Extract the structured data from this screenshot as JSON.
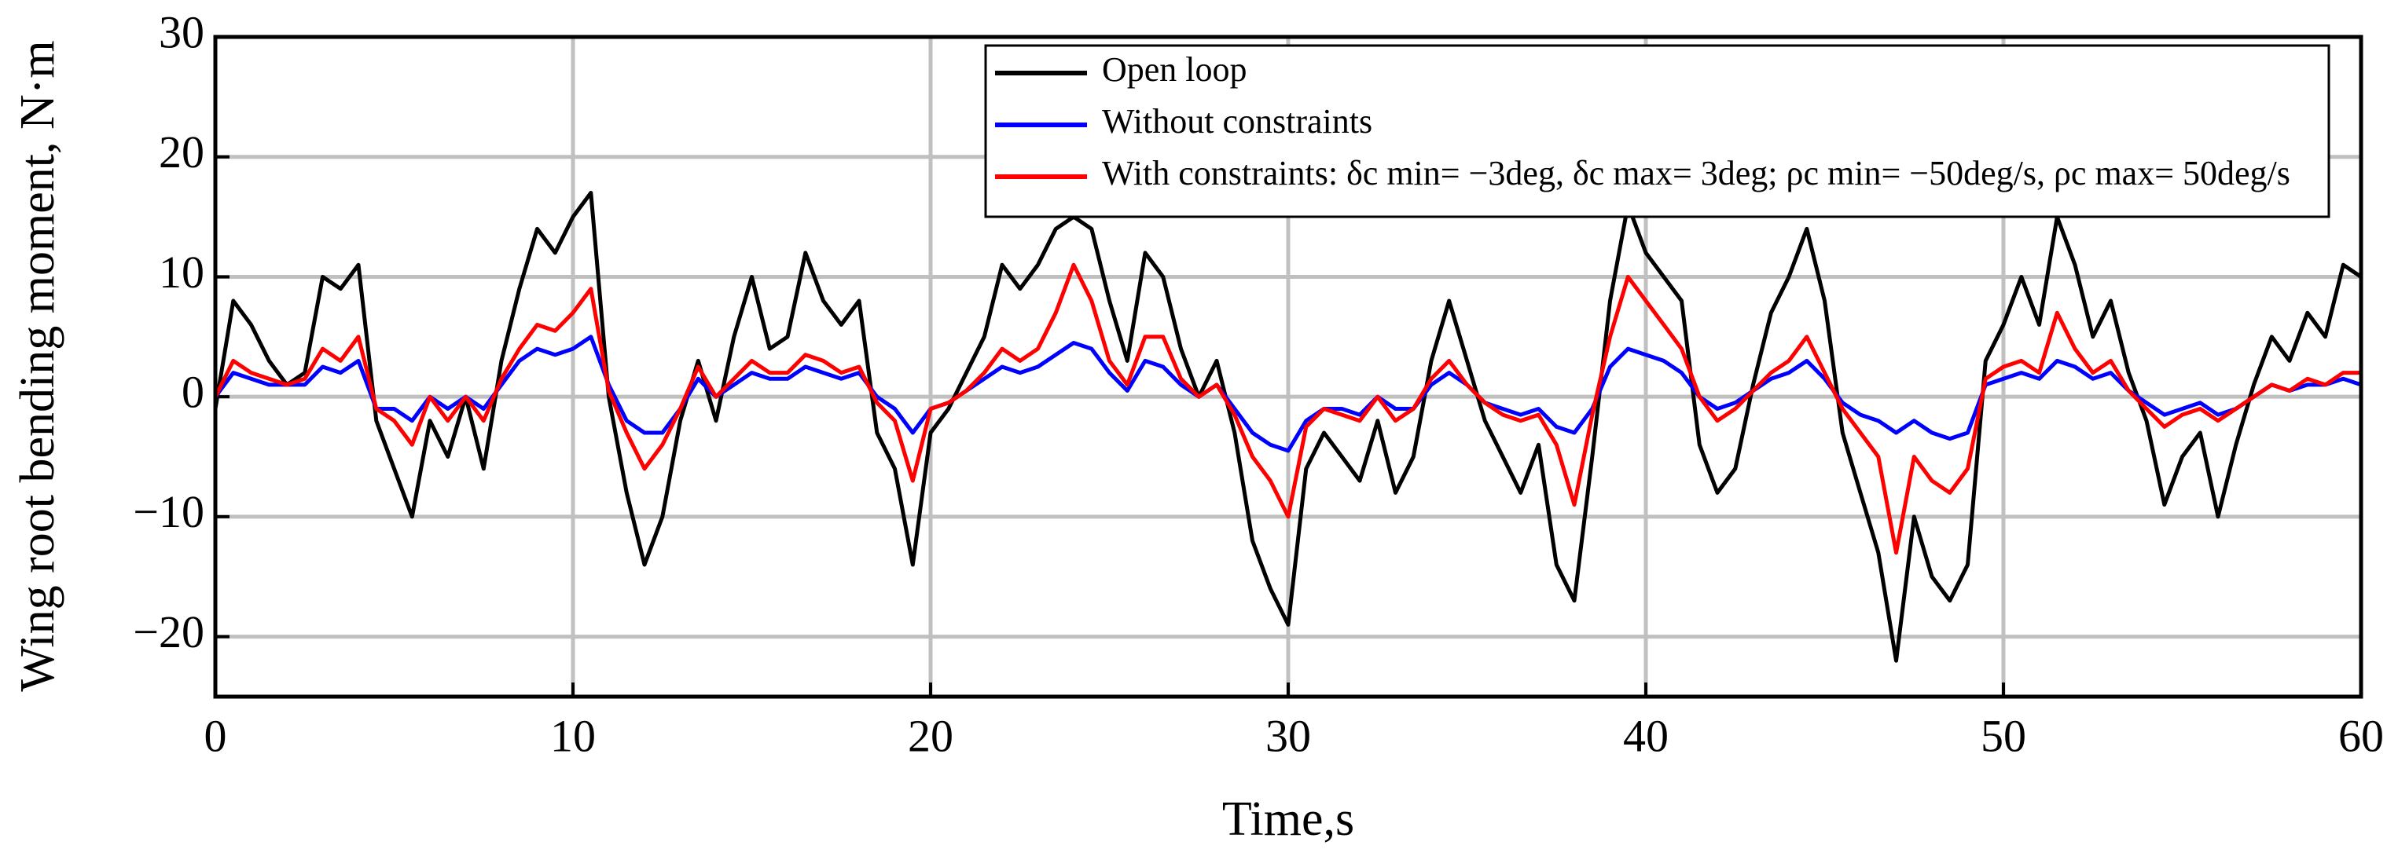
{
  "chart_data": {
    "type": "line",
    "xlabel": "Time,s",
    "ylabel": "Wing root bending moment, N·m",
    "x": [
      0,
      0.5,
      1,
      1.5,
      2,
      2.5,
      3,
      3.5,
      4,
      4.5,
      5,
      5.5,
      6,
      6.5,
      7,
      7.5,
      8,
      8.5,
      9,
      9.5,
      10,
      10.5,
      11,
      11.5,
      12,
      12.5,
      13,
      13.5,
      14,
      14.5,
      15,
      15.5,
      16,
      16.5,
      17,
      17.5,
      18,
      18.5,
      19,
      19.5,
      20,
      20.5,
      21,
      21.5,
      22,
      22.5,
      23,
      23.5,
      24,
      24.5,
      25,
      25.5,
      26,
      26.5,
      27,
      27.5,
      28,
      28.5,
      29,
      29.5,
      30,
      30.5,
      31,
      31.5,
      32,
      32.5,
      33,
      33.5,
      34,
      34.5,
      35,
      35.5,
      36,
      36.5,
      37,
      37.5,
      38,
      38.5,
      39,
      39.5,
      40,
      40.5,
      41,
      41.5,
      42,
      42.5,
      43,
      43.5,
      44,
      44.5,
      45,
      45.5,
      46,
      46.5,
      47,
      47.5,
      48,
      48.5,
      49,
      49.5,
      50,
      50.5,
      51,
      51.5,
      52,
      52.5,
      53,
      53.5,
      54,
      54.5,
      55,
      55.5,
      56,
      56.5,
      57,
      57.5,
      58,
      58.5,
      59,
      59.5,
      60
    ],
    "series": [
      {
        "name": "Open loop",
        "color": "#000000",
        "values": [
          -1,
          8,
          6,
          3,
          1,
          2,
          10,
          9,
          11,
          -2,
          -6,
          -10,
          -2,
          -5,
          0,
          -6,
          3,
          9,
          14,
          12,
          15,
          17,
          0,
          -8,
          -14,
          -10,
          -2,
          3,
          -2,
          5,
          10,
          4,
          5,
          12,
          8,
          6,
          8,
          -3,
          -6,
          -14,
          -3,
          -1,
          2,
          5,
          11,
          9,
          11,
          14,
          15,
          14,
          8,
          3,
          12,
          10,
          4,
          0,
          3,
          -3,
          -12,
          -16,
          -19,
          -6,
          -3,
          -5,
          -7,
          -2,
          -8,
          -5,
          3,
          8,
          3,
          -2,
          -5,
          -8,
          -4,
          -14,
          -17,
          -5,
          8,
          16,
          12,
          10,
          8,
          -4,
          -8,
          -6,
          1,
          7,
          10,
          14,
          8,
          -3,
          -8,
          -13,
          -22,
          -10,
          -15,
          -17,
          -14,
          3,
          6,
          10,
          6,
          15,
          11,
          5,
          8,
          2,
          -2,
          -9,
          -5,
          -3,
          -10,
          -4,
          1,
          5,
          3,
          7,
          5,
          11,
          10
        ]
      },
      {
        "name": "Without constraints",
        "color": "#0000ff",
        "values": [
          0,
          2,
          1.5,
          1,
          1,
          1,
          2.5,
          2,
          3,
          -1,
          -1,
          -2,
          0,
          -1,
          0,
          -1,
          1,
          3,
          4,
          3.5,
          4,
          5,
          1,
          -2,
          -3,
          -3,
          -1,
          1.5,
          0,
          1,
          2,
          1.5,
          1.5,
          2.5,
          2,
          1.5,
          2,
          0,
          -1,
          -3,
          -1,
          -0.5,
          0.5,
          1.5,
          2.5,
          2,
          2.5,
          3.5,
          4.5,
          4,
          2,
          0.5,
          3,
          2.5,
          1,
          0,
          1,
          -1,
          -3,
          -4,
          -4.5,
          -2,
          -1,
          -1,
          -1.5,
          0,
          -1,
          -1,
          1,
          2,
          1,
          -0.5,
          -1,
          -1.5,
          -1,
          -2.5,
          -3,
          -1,
          2.5,
          4,
          3.5,
          3,
          2,
          0,
          -1,
          -0.5,
          0.5,
          1.5,
          2,
          3,
          1.5,
          -0.5,
          -1.5,
          -2,
          -3,
          -2,
          -3,
          -3.5,
          -3,
          1,
          1.5,
          2,
          1.5,
          3,
          2.5,
          1.5,
          2,
          0.5,
          -0.5,
          -1.5,
          -1,
          -0.5,
          -1.5,
          -1,
          0,
          1,
          0.5,
          1,
          1,
          1.5,
          1
        ]
      },
      {
        "name": "With constraints: δc min= −3deg, δc max= 3deg; ρc min= −50deg/s, ρc max= 50deg/s",
        "color": "#ff0000",
        "values": [
          0,
          3,
          2,
          1.5,
          1,
          1.5,
          4,
          3,
          5,
          -1,
          -2,
          -4,
          0,
          -2,
          0,
          -2,
          1.5,
          4,
          6,
          5.5,
          7,
          9,
          0.5,
          -3,
          -6,
          -4,
          -1,
          2.5,
          0,
          1.5,
          3,
          2,
          2,
          3.5,
          3,
          2,
          2.5,
          -0.5,
          -2,
          -7,
          -1,
          -0.5,
          0.5,
          2,
          4,
          3,
          4,
          7,
          11,
          8,
          3,
          1,
          5,
          5,
          1.5,
          0,
          1,
          -1.5,
          -5,
          -7,
          -10,
          -2.5,
          -1,
          -1.5,
          -2,
          0,
          -2,
          -1,
          1.5,
          3,
          1,
          -0.5,
          -1.5,
          -2,
          -1.5,
          -4,
          -9,
          -1.5,
          5,
          10,
          8,
          6,
          4,
          0,
          -2,
          -1,
          0.5,
          2,
          3,
          5,
          2,
          -1,
          -3,
          -5,
          -13,
          -5,
          -7,
          -8,
          -6,
          1.5,
          2.5,
          3,
          2,
          7,
          4,
          2,
          3,
          0.5,
          -1,
          -2.5,
          -1.5,
          -1,
          -2,
          -1,
          0,
          1,
          0.5,
          1.5,
          1,
          2,
          2
        ]
      }
    ],
    "xlim": [
      0,
      60
    ],
    "xticks": [
      0,
      10,
      20,
      30,
      40,
      50,
      60
    ],
    "ylim": [
      -25,
      30
    ],
    "yticks": [
      {
        "value": -20,
        "label": "−20"
      },
      {
        "value": -10,
        "label": "−10"
      },
      0,
      10,
      20,
      30
    ],
    "grid": true,
    "legend": "upper right"
  }
}
